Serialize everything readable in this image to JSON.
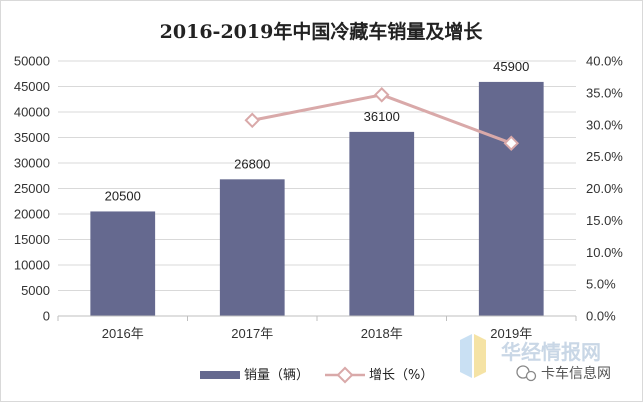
{
  "chart_data": {
    "type": "bar",
    "title": "2016-2019年中国冷藏车销量及增长",
    "categories": [
      "2016年",
      "2017年",
      "2018年",
      "2019年"
    ],
    "series": [
      {
        "name": "销量（辆）",
        "type": "bar",
        "axis": "left",
        "values": [
          20500,
          26800,
          36100,
          45900
        ],
        "data_labels": [
          "20500",
          "26800",
          "36100",
          "45900"
        ],
        "color": "#65698f"
      },
      {
        "name": "增长（%）",
        "type": "line",
        "axis": "right",
        "values": [
          null,
          30.7,
          34.7,
          27.1
        ],
        "color": "#d9a9a9"
      }
    ],
    "y_left": {
      "range": [
        0,
        50000
      ],
      "ticks": [
        "0",
        "5000",
        "10000",
        "15000",
        "20000",
        "25000",
        "30000",
        "35000",
        "40000",
        "45000",
        "50000"
      ]
    },
    "y_right": {
      "range": [
        0,
        40
      ],
      "ticks": [
        "0.0%",
        "5.0%",
        "10.0%",
        "15.0%",
        "20.0%",
        "25.0%",
        "30.0%",
        "35.0%",
        "40.0%"
      ]
    },
    "grid": "horizontal",
    "legend": "bottom"
  },
  "watermark": {
    "brand": "华经情报网",
    "source": "卡车信息网"
  }
}
